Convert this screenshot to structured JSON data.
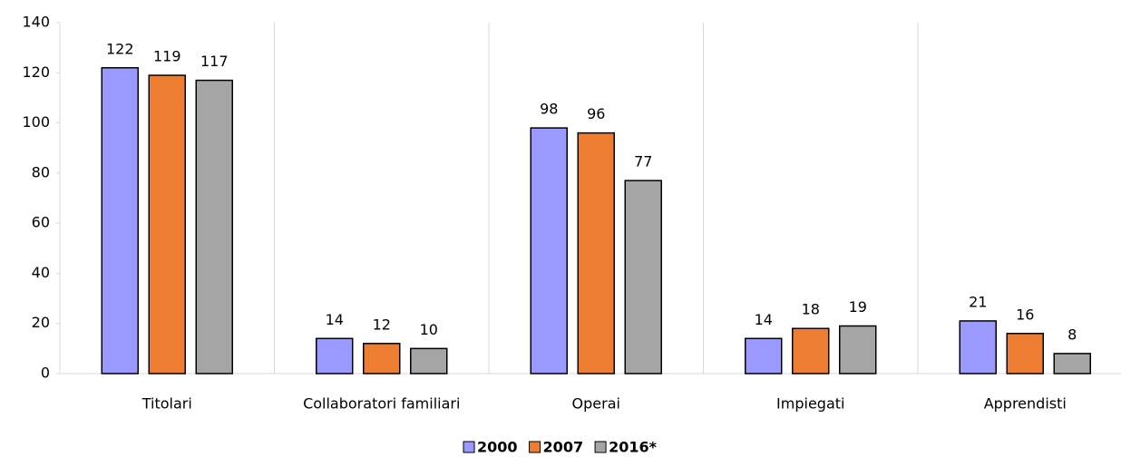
{
  "chart_data": {
    "type": "bar",
    "categories": [
      "Titolari",
      "Collaboratori familiari",
      "Operai",
      "Impiegati",
      "Apprendisti"
    ],
    "series": [
      {
        "name": "2000",
        "color": "#9999ff",
        "values": [
          122,
          14,
          98,
          14,
          21
        ]
      },
      {
        "name": "2007",
        "color": "#ed7d31",
        "values": [
          119,
          12,
          96,
          18,
          16
        ]
      },
      {
        "name": "2016*",
        "color": "#a5a5a5",
        "values": [
          117,
          10,
          77,
          19,
          8
        ]
      }
    ],
    "ylim": [
      0,
      140
    ],
    "yticks": [
      0,
      20,
      40,
      60,
      80,
      100,
      120,
      140
    ],
    "legend": "bottom"
  }
}
